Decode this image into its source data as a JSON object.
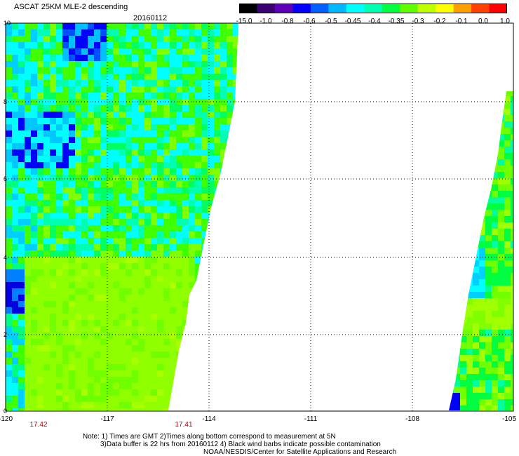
{
  "title": "ASCAT 25KM MLE-2 descending",
  "date": "20160112",
  "colorbar": {
    "labels": [
      "-15.0",
      "-1.0",
      "-0.8",
      "-0.6",
      "-0.5",
      "-0.45",
      "-0.4",
      "-0.35",
      "-0.3",
      "-0.2",
      "-0.1",
      "0.0",
      "1.0"
    ],
    "colors": [
      "#000000",
      "#3a0070",
      "#6000b8",
      "#0000ff",
      "#0060ff",
      "#00b8ff",
      "#00ffff",
      "#00ffb0",
      "#00ff40",
      "#60ff00",
      "#c0ff00",
      "#ffff00",
      "#ffa000",
      "#ff4000",
      "#ff0000"
    ]
  },
  "axes": {
    "y_labels": [
      "10",
      "8",
      "6",
      "4",
      "2",
      "0"
    ],
    "x_labels": [
      "-120",
      "-117",
      "-114",
      "-111",
      "-108",
      "-105"
    ]
  },
  "times": [
    "17.42",
    "17.41"
  ],
  "notes": [
    "Note: 1) Times are GMT 2)Times along bottom correspond to measurement at 5N",
    "3)Data buffer is 22 hrs from 20160112 4) Black wind barbs indicate possible contamination",
    "NOAA/NESDIS/Center for Satellite Applications and Research"
  ]
}
